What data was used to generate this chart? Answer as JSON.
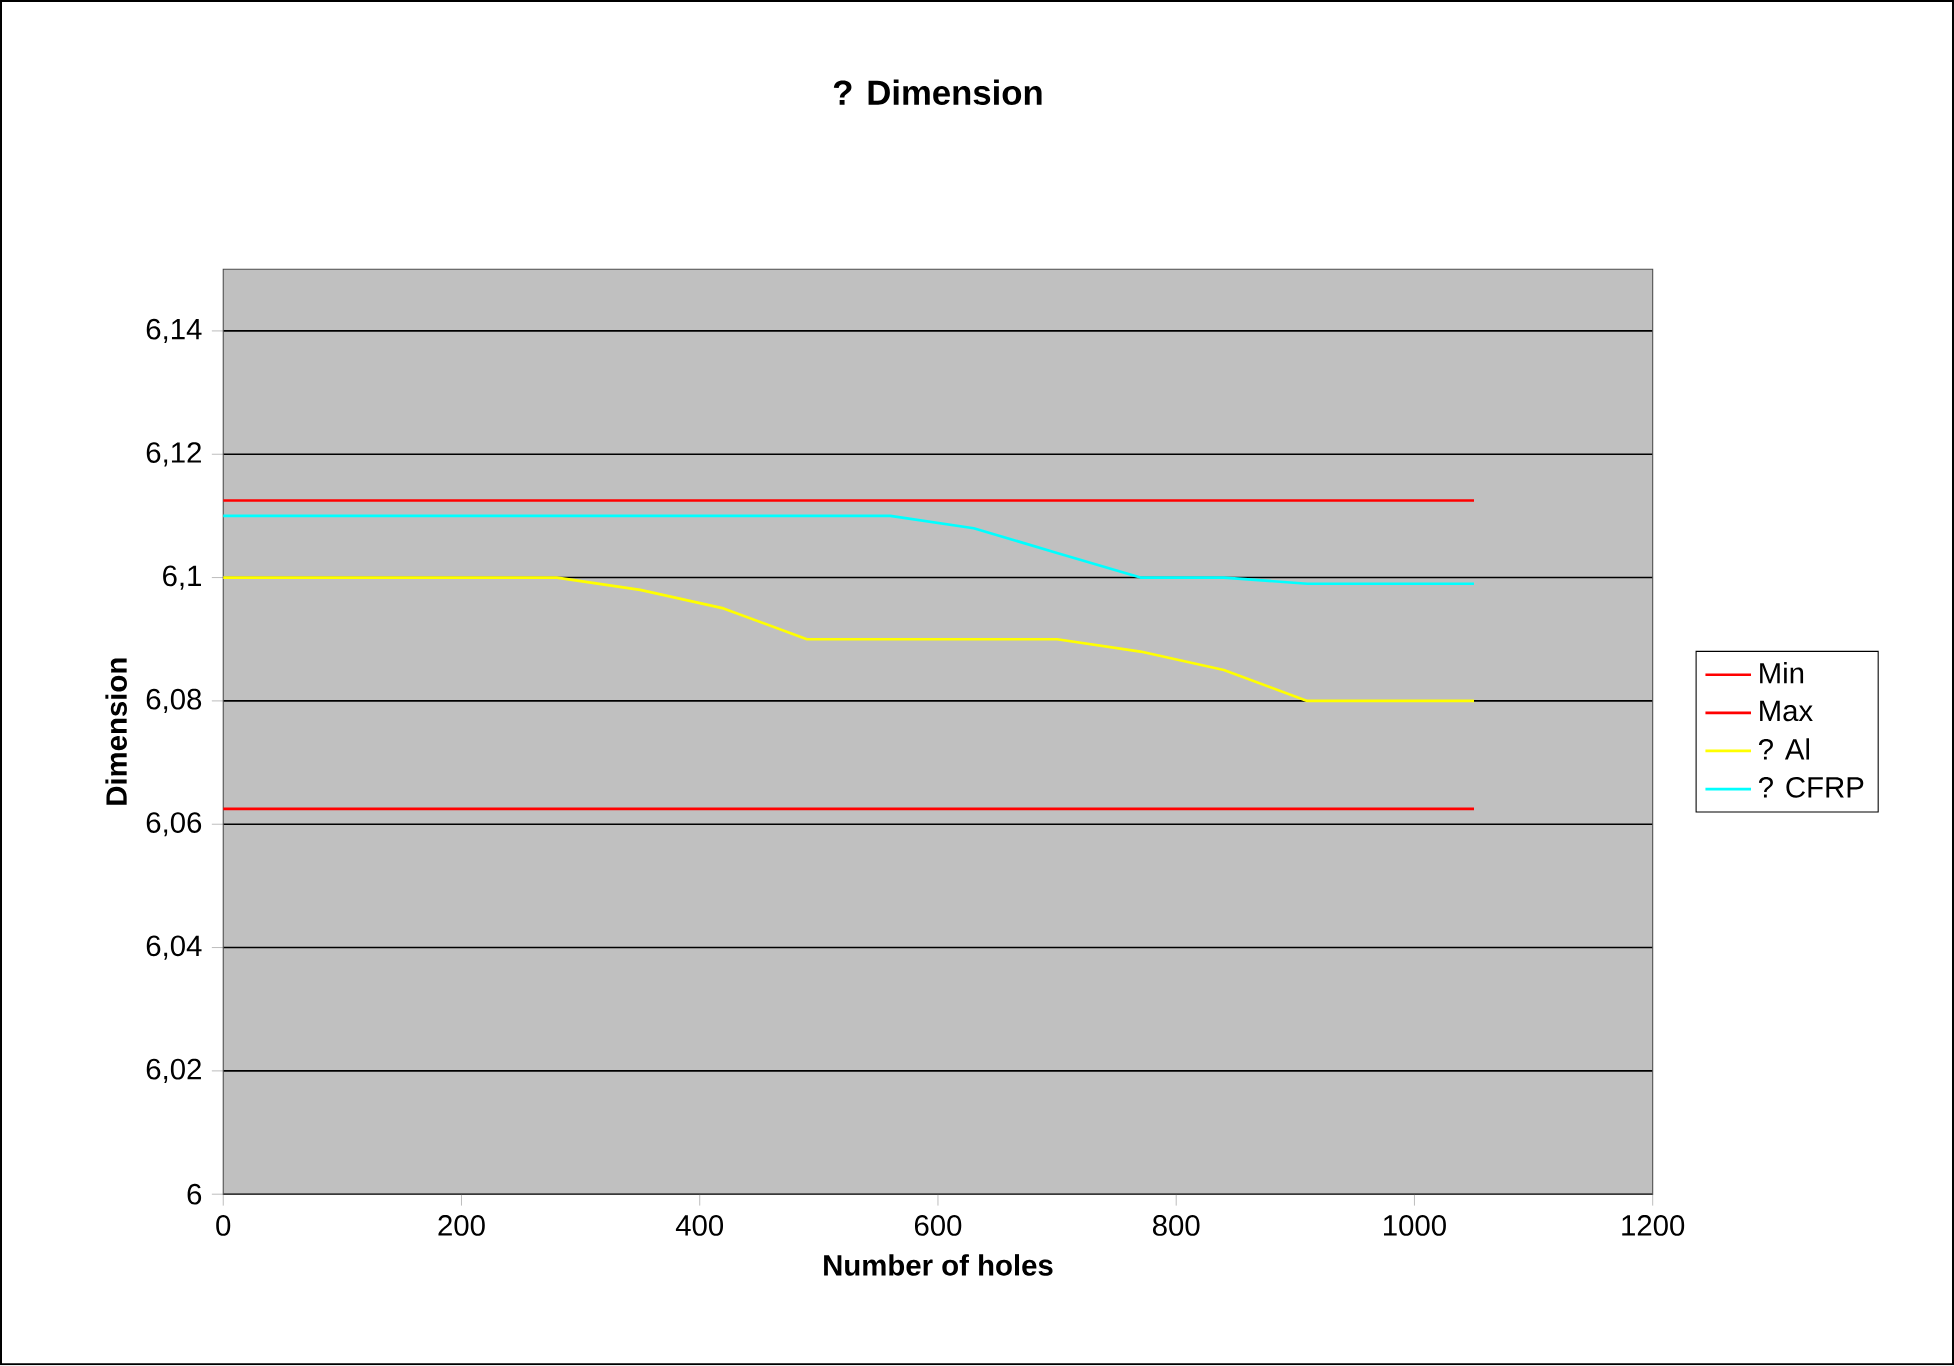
{
  "chart_data": {
    "type": "line",
    "title": "? Dimension",
    "xlabel": "Number of holes",
    "ylabel": "Dimension",
    "x": [
      0,
      70,
      140,
      210,
      280,
      350,
      420,
      490,
      560,
      630,
      700,
      770,
      840,
      910,
      980,
      1050
    ],
    "series": [
      {
        "name": "Min",
        "color": "#ff0000",
        "values": [
          6.0625,
          6.0625,
          6.0625,
          6.0625,
          6.0625,
          6.0625,
          6.0625,
          6.0625,
          6.0625,
          6.0625,
          6.0625,
          6.0625,
          6.0625,
          6.0625,
          6.0625,
          6.0625
        ]
      },
      {
        "name": "Max",
        "color": "#ff0000",
        "values": [
          6.1125,
          6.1125,
          6.1125,
          6.1125,
          6.1125,
          6.1125,
          6.1125,
          6.1125,
          6.1125,
          6.1125,
          6.1125,
          6.1125,
          6.1125,
          6.1125,
          6.1125,
          6.1125
        ]
      },
      {
        "name": "? Al",
        "color": "#ffff00",
        "values": [
          6.1,
          6.1,
          6.1,
          6.1,
          6.1,
          6.098,
          6.095,
          6.09,
          6.09,
          6.09,
          6.09,
          6.088,
          6.085,
          6.08,
          6.08,
          6.08
        ]
      },
      {
        "name": "? CFRP",
        "color": "#00ffff",
        "values": [
          6.11,
          6.11,
          6.11,
          6.11,
          6.11,
          6.11,
          6.11,
          6.11,
          6.11,
          6.108,
          6.104,
          6.1,
          6.1,
          6.099,
          6.099,
          6.099
        ]
      }
    ],
    "xlim": [
      0,
      1200
    ],
    "xticks": [
      0,
      200,
      400,
      600,
      800,
      1000,
      1200
    ],
    "ylim": [
      6,
      6.15
    ],
    "yticks": [
      6,
      {
        "value": 6.02,
        "label": "6,02"
      },
      {
        "value": 6.04,
        "label": "6,04"
      },
      {
        "value": 6.06,
        "label": "6,06"
      },
      {
        "value": 6.08,
        "label": "6,08"
      },
      {
        "value": 6.1,
        "label": "6,1"
      },
      {
        "value": 6.12,
        "label": "6,12"
      },
      {
        "value": 6.14,
        "label": "6,14"
      }
    ],
    "grid": "y",
    "legend": "right",
    "marker": "none",
    "line_style": "solid"
  }
}
